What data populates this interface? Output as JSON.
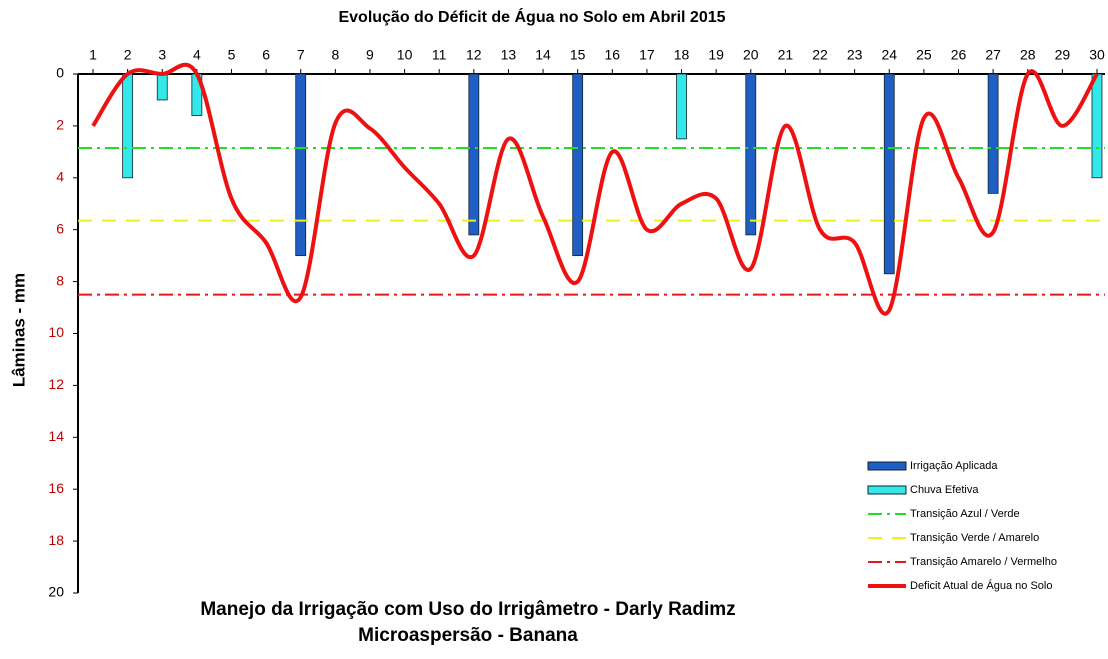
{
  "chart_data": {
    "type": "bar_line",
    "title": "Evolução do Déficit de Água no Solo em Abril 2015",
    "subtitle": [
      "Manejo da Irrigação com Uso do Irrigâmetro - Darly Radimz",
      "Microaspersão - Banana"
    ],
    "y_label": "Lâminas - mm",
    "categories": [
      "1",
      "2",
      "3",
      "4",
      "5",
      "6",
      "7",
      "8",
      "9",
      "10",
      "11",
      "12",
      "13",
      "14",
      "15",
      "16",
      "17",
      "18",
      "19",
      "20",
      "21",
      "22",
      "23",
      "24",
      "25",
      "26",
      "27",
      "28",
      "29",
      "30"
    ],
    "ylim": [
      0,
      20
    ],
    "yticks": [
      0,
      2,
      4,
      6,
      8,
      10,
      12,
      14,
      16,
      18,
      20
    ],
    "y_inverted": true,
    "series": [
      {
        "name": "Irrigação Aplicada",
        "kind": "bar",
        "color": "#1f5fc4",
        "values": [
          null,
          null,
          null,
          null,
          null,
          null,
          7.0,
          null,
          null,
          null,
          null,
          6.2,
          null,
          null,
          7.0,
          null,
          null,
          null,
          null,
          6.2,
          null,
          null,
          null,
          7.7,
          null,
          null,
          4.6,
          null,
          null,
          null
        ]
      },
      {
        "name": "Chuva Efetiva",
        "kind": "bar",
        "color": "#33e8e8",
        "values": [
          null,
          4.0,
          1.0,
          1.6,
          null,
          null,
          null,
          null,
          null,
          null,
          null,
          null,
          null,
          null,
          null,
          null,
          null,
          2.5,
          null,
          null,
          null,
          null,
          null,
          null,
          null,
          null,
          null,
          null,
          null,
          4.0
        ]
      },
      {
        "name": "Transição Azul / Verde",
        "kind": "hline",
        "color": "#22dd22",
        "value": 2.85
      },
      {
        "name": "Transição Verde / Amarelo",
        "kind": "hline",
        "color": "#f0f020",
        "value": 5.65
      },
      {
        "name": "Transição Amarelo / Vermelho",
        "kind": "hline",
        "color": "#e81818",
        "value": 8.5
      },
      {
        "name": "Deficit Atual de Água no Solo",
        "kind": "line",
        "color": "#ee1111",
        "values": [
          2.0,
          0,
          0,
          0,
          4.8,
          6.5,
          8.6,
          1.9,
          2.1,
          3.6,
          5.0,
          7.0,
          2.5,
          5.5,
          8.0,
          3.0,
          6.0,
          5.0,
          4.8,
          7.5,
          2.0,
          6.0,
          6.5,
          9.1,
          1.7,
          4.0,
          6.1,
          0,
          2.0,
          0
        ]
      }
    ]
  }
}
